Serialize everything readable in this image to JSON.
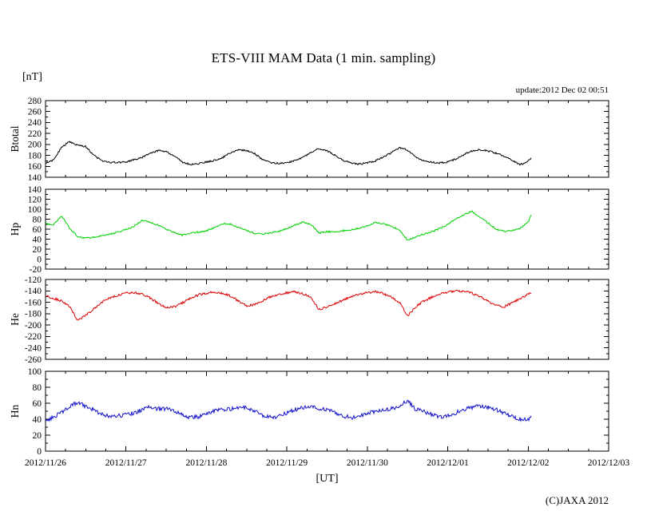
{
  "page": {
    "background": "#ffffff"
  },
  "chart_data": {
    "type": "line",
    "title": "ETS-VIII MAM Data (1 min. sampling)",
    "unit_label": "[nT]",
    "xlabel": "[UT]",
    "update_label": "update:2012 Dec 02 00:51",
    "copyright": "(C)JAXA 2012",
    "grid": "off",
    "legend": "none",
    "x_axis": {
      "tick_labels": [
        "2012/11/26",
        "2012/11/27",
        "2012/11/28",
        "2012/11/29",
        "2012/11/30",
        "2012/12/01",
        "2012/12/02",
        "2012/12/03"
      ],
      "range_days": [
        0,
        7
      ],
      "major_tick_day": 1,
      "minor_tick_day": 0.25
    },
    "sampling": {
      "x_start_day": 0.0,
      "x_step_day": 0.1,
      "x_end_day": 6.04
    },
    "panels": [
      {
        "name": "Btotal",
        "color": "#000000",
        "ylim": [
          140,
          280
        ],
        "ytick_step": 20,
        "yminor_step": 10,
        "ytick_labels": [
          280,
          260,
          240,
          220,
          200,
          180,
          160,
          140
        ],
        "noise_amplitude": 1.6,
        "values": [
          166,
          172,
          195,
          205,
          198,
          196,
          180,
          170,
          167,
          167,
          168,
          172,
          176,
          183,
          189,
          187,
          179,
          168,
          163,
          165,
          168,
          171,
          176,
          185,
          190,
          189,
          183,
          172,
          167,
          165,
          167,
          170,
          176,
          185,
          193,
          188,
          180,
          171,
          166,
          164,
          166,
          170,
          177,
          185,
          194,
          190,
          177,
          170,
          167,
          166,
          168,
          173,
          181,
          188,
          190,
          188,
          184,
          179,
          171,
          163,
          169,
          176
        ]
      },
      {
        "name": "Hp",
        "color": "#00d000",
        "ylim": [
          -20,
          140
        ],
        "ytick_step": 20,
        "yminor_step": 10,
        "ytick_labels": [
          140,
          120,
          100,
          80,
          60,
          40,
          20,
          0,
          -20
        ],
        "noise_amplitude": 1.6,
        "values": [
          70,
          69,
          86,
          62,
          45,
          42,
          44,
          47,
          50,
          54,
          59,
          66,
          77,
          74,
          68,
          60,
          53,
          48,
          52,
          54,
          57,
          63,
          71,
          70,
          64,
          57,
          52,
          50,
          52,
          56,
          61,
          68,
          74,
          70,
          52,
          55,
          54,
          57,
          59,
          62,
          67,
          74,
          71,
          66,
          58,
          38,
          45,
          50,
          55,
          61,
          70,
          80,
          89,
          96,
          83,
          72,
          60,
          56,
          57,
          62,
          74,
          89
        ]
      },
      {
        "name": "He",
        "color": "#dd0000",
        "ylim": [
          -260,
          -120
        ],
        "ytick_step": 20,
        "yminor_step": 10,
        "ytick_labels": [
          -120,
          -140,
          -160,
          -180,
          -200,
          -220,
          -240,
          -260
        ],
        "noise_amplitude": 2.0,
        "values": [
          -148,
          -153,
          -158,
          -168,
          -192,
          -183,
          -172,
          -160,
          -152,
          -148,
          -144,
          -143,
          -146,
          -152,
          -162,
          -170,
          -168,
          -161,
          -153,
          -147,
          -144,
          -142,
          -144,
          -149,
          -158,
          -166,
          -164,
          -157,
          -150,
          -146,
          -143,
          -142,
          -145,
          -151,
          -173,
          -168,
          -163,
          -156,
          -150,
          -146,
          -143,
          -141,
          -145,
          -151,
          -160,
          -184,
          -168,
          -158,
          -151,
          -146,
          -142,
          -140,
          -141,
          -144,
          -150,
          -158,
          -165,
          -168,
          -161,
          -153,
          -146,
          -143
        ]
      },
      {
        "name": "Hn",
        "color": "#1111cc",
        "ylim": [
          0,
          100
        ],
        "ytick_step": 20,
        "yminor_step": 10,
        "ytick_labels": [
          100,
          80,
          60,
          40,
          20,
          0
        ],
        "noise_amplitude": 2.6,
        "values": [
          38,
          42,
          49,
          56,
          61,
          56,
          52,
          46,
          44,
          44,
          46,
          48,
          52,
          55,
          53,
          53,
          50,
          45,
          42,
          43,
          46,
          50,
          52,
          53,
          54,
          54,
          50,
          45,
          42,
          44,
          48,
          52,
          55,
          56,
          54,
          52,
          48,
          44,
          42,
          44,
          47,
          50,
          52,
          53,
          56,
          64,
          52,
          50,
          46,
          43,
          45,
          48,
          52,
          55,
          56,
          55,
          52,
          48,
          43,
          40,
          40,
          42
        ]
      }
    ]
  }
}
